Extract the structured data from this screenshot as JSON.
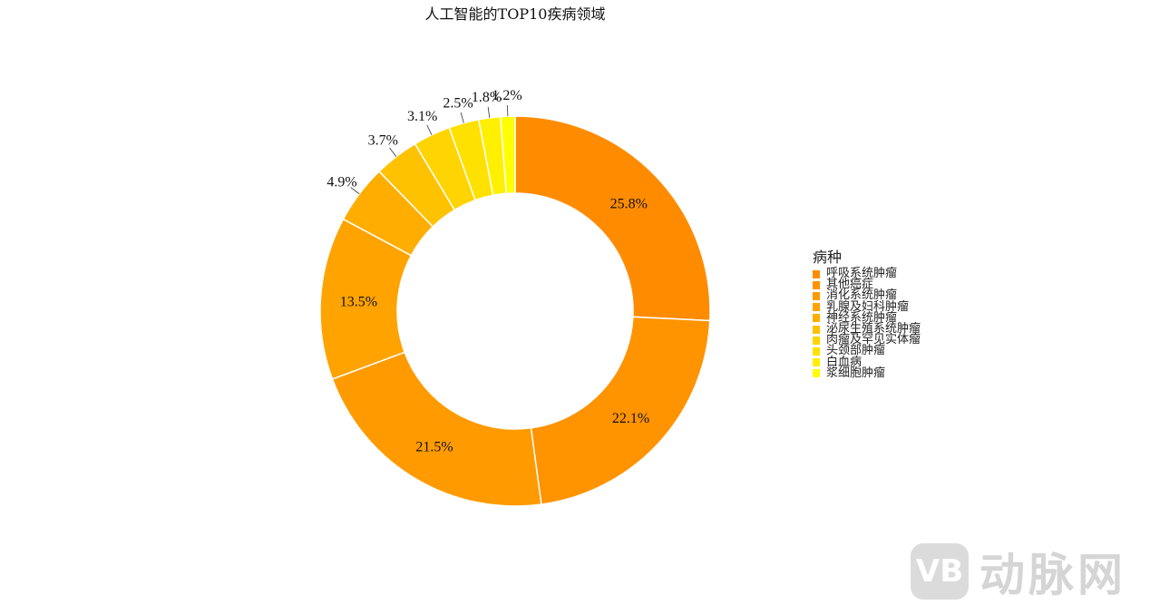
{
  "chart_data": {
    "type": "pie",
    "style": "donut",
    "title": "人工智能的TOP10疾病领域",
    "legend_title": "病种",
    "legend_position": "right",
    "categories": [
      "呼吸系统肿瘤",
      "其他癌症",
      "消化系统肿瘤",
      "乳腺及妇科肿瘤",
      "神经系统肿瘤",
      "泌尿生殖系统肿瘤",
      "肉瘤及罕见实体瘤",
      "头颈部肿瘤",
      "白血病",
      "浆细胞肿瘤"
    ],
    "values": [
      25.8,
      22.1,
      21.5,
      13.5,
      4.9,
      3.7,
      3.1,
      2.5,
      1.8,
      1.2
    ],
    "labels": [
      "25.8%",
      "22.1%",
      "21.5%",
      "13.5%",
      "4.9%",
      "3.7%",
      "3.1%",
      "2.5%",
      "1.8%",
      "1.2%"
    ],
    "colors": [
      "#FF8C00",
      "#FF9300",
      "#FF9B00",
      "#FFA300",
      "#FFAE00",
      "#FFC200",
      "#FFD400",
      "#FFE100",
      "#FFEF00",
      "#FFFF00"
    ]
  },
  "watermark": {
    "logo": "VB",
    "text": "动脉网"
  }
}
